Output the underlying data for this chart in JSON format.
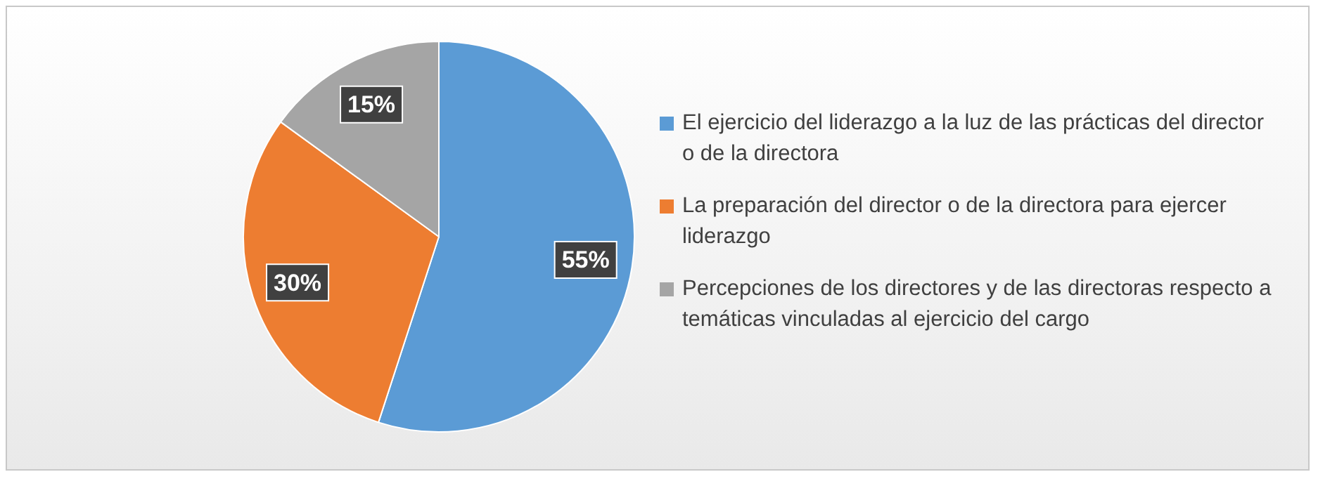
{
  "chart_data": {
    "type": "pie",
    "categories": [
      "El ejercicio del liderazgo a la luz de las prácticas del director o de la directora",
      "La preparación del director o de la directora para ejercer liderazgo",
      "Percepciones de los directores y de las directoras respecto a temáticas vinculadas al ejercicio del cargo"
    ],
    "values": [
      55,
      30,
      15
    ],
    "colors": [
      "#5b9bd5",
      "#ed7d31",
      "#a5a5a5"
    ],
    "value_labels": [
      "55%",
      "30%",
      "15%"
    ],
    "legend": "right"
  }
}
